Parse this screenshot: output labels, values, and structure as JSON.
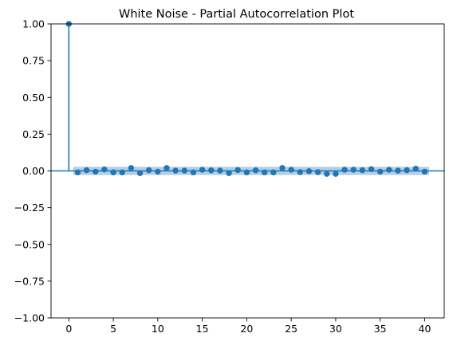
{
  "chart_data": {
    "type": "scatter",
    "title": "White Noise - Partial Autocorrelation Plot",
    "xlabel": "",
    "ylabel": "",
    "xlim": [
      -2,
      42.2
    ],
    "ylim": [
      -1.0,
      1.0
    ],
    "x_ticks": [
      0,
      5,
      10,
      15,
      20,
      25,
      30,
      35,
      40
    ],
    "x_tick_labels": [
      "0",
      "5",
      "10",
      "15",
      "20",
      "25",
      "30",
      "35",
      "40"
    ],
    "y_ticks": [
      1.0,
      0.75,
      0.5,
      0.25,
      0.0,
      -0.25,
      -0.5,
      -0.75,
      -1.0
    ],
    "y_tick_labels": [
      "1.00",
      "0.75",
      "0.50",
      "0.25",
      "0.00",
      "−0.25",
      "−0.50",
      "−0.75",
      "−1.00"
    ],
    "grid": false,
    "legend": "none",
    "confidence_band": [
      -0.028,
      0.028
    ],
    "series": [
      {
        "lags": [
          0,
          1,
          2,
          3,
          4,
          5,
          6,
          7,
          8,
          9,
          10,
          11,
          12,
          13,
          14,
          15,
          16,
          17,
          18,
          19,
          20,
          21,
          22,
          23,
          24,
          25,
          26,
          27,
          28,
          29,
          30,
          31,
          32,
          33,
          34,
          35,
          36,
          37,
          38,
          39,
          40
        ],
        "values": [
          1.0,
          -0.01,
          0.005,
          -0.005,
          0.01,
          -0.01,
          -0.01,
          0.02,
          -0.015,
          0.005,
          -0.005,
          0.02,
          0.002,
          0.002,
          -0.01,
          0.008,
          0.004,
          0.002,
          -0.015,
          0.006,
          -0.01,
          0.004,
          -0.01,
          -0.01,
          0.02,
          0.008,
          -0.008,
          -0.002,
          -0.008,
          -0.02,
          -0.02,
          0.008,
          0.008,
          0.005,
          0.012,
          -0.005,
          0.008,
          0.002,
          0.005,
          0.015,
          -0.005
        ]
      }
    ],
    "colors": {
      "marker": "#1f77b4",
      "band": "#a9c5df",
      "axis": "#000000"
    }
  }
}
